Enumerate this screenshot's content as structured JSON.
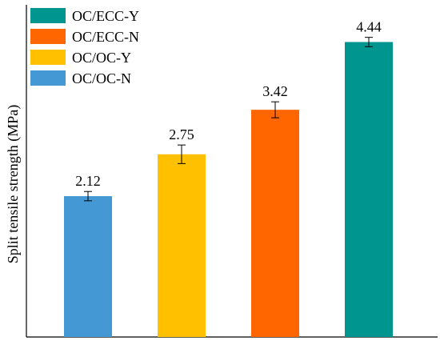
{
  "chart_data": {
    "type": "bar",
    "categories": [
      "OC/OC-N",
      "OC/OC-Y",
      "OC/ECC-N",
      "OC/ECC-Y"
    ],
    "values": [
      2.12,
      2.75,
      3.42,
      4.44
    ],
    "error": [
      0.07,
      0.14,
      0.12,
      0.07
    ],
    "value_labels": [
      "2.12",
      "2.75",
      "3.42",
      "4.44"
    ],
    "colors": [
      "#4499D4",
      "#FFC000",
      "#FF6600",
      "#00968F"
    ],
    "title": "",
    "xlabel": "",
    "ylabel": "Split tensile strength (MPa)",
    "ylim": [
      0,
      5.0
    ],
    "grid": false,
    "legend": {
      "placement": "top-left",
      "entries": [
        {
          "label": "OC/ECC-Y",
          "color": "#00968F"
        },
        {
          "label": "OC/ECC-N",
          "color": "#FF6600"
        },
        {
          "label": "OC/OC-Y",
          "color": "#FFC000"
        },
        {
          "label": "OC/OC-N",
          "color": "#4499D4"
        }
      ]
    }
  }
}
